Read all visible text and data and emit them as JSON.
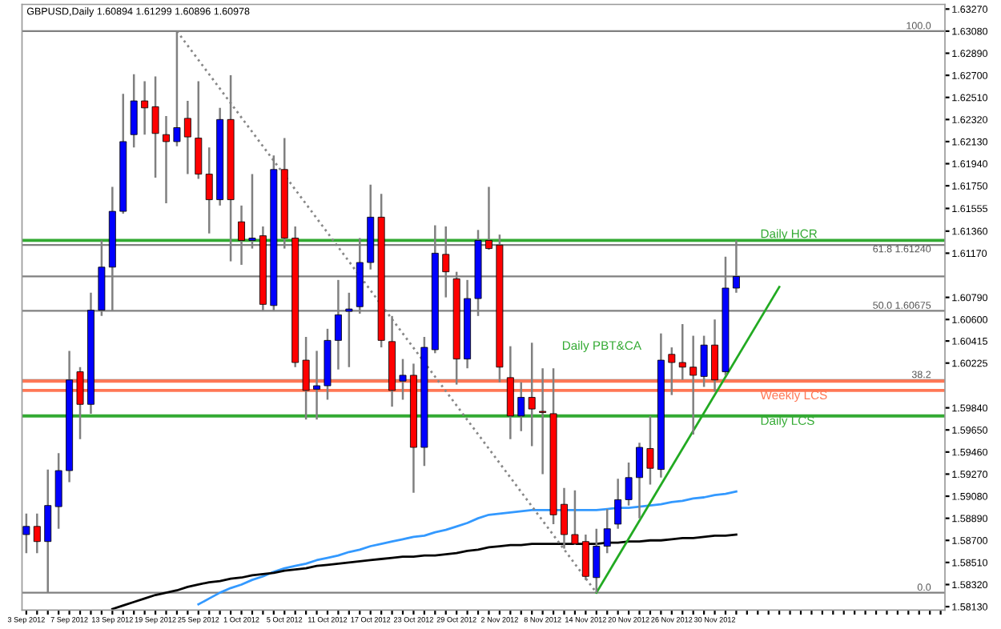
{
  "chart_data": {
    "type": "candlestick",
    "title": "GBPUSD,Daily 1.60894 1.61299 1.60896 1.60978",
    "categories": [
      "3 Sep 2012",
      null,
      null,
      null,
      "7 Sep 2012",
      null,
      null,
      null,
      "13 Sep 2012",
      null,
      null,
      null,
      "19 Sep 2012",
      null,
      null,
      null,
      "25 Sep 2012",
      null,
      null,
      null,
      "1 Oct 2012",
      null,
      null,
      null,
      "5 Oct 2012",
      null,
      null,
      null,
      "11 Oct 2012",
      null,
      null,
      null,
      "17 Oct 2012",
      null,
      null,
      null,
      "23 Oct 2012",
      null,
      null,
      null,
      "29 Oct 2012",
      null,
      null,
      null,
      "2 Nov 2012",
      null,
      null,
      null,
      "8 Nov 2012",
      null,
      null,
      null,
      "14 Nov 2012",
      null,
      null,
      null,
      "20 Nov 2012",
      null,
      null,
      null,
      "26 Nov 2012",
      null,
      null,
      null,
      "30 Nov 2012",
      null,
      null,
      null,
      null,
      null,
      null,
      null,
      null,
      null,
      null,
      null,
      null,
      null,
      null,
      null,
      null,
      null,
      null,
      null,
      null,
      null
    ],
    "ohlc": [
      [
        1.5875,
        1.5893,
        1.5859,
        1.5882
      ],
      [
        1.5882,
        1.5893,
        1.5859,
        1.5869
      ],
      [
        1.5869,
        1.5931,
        1.5825,
        1.59
      ],
      [
        1.5899,
        1.5945,
        1.588,
        1.593
      ],
      [
        1.593,
        1.6033,
        1.592,
        1.6008
      ],
      [
        1.6015,
        1.6019,
        1.5957,
        1.5987
      ],
      [
        1.5987,
        1.6083,
        1.5979,
        1.6068
      ],
      [
        1.6068,
        1.6128,
        1.6063,
        1.6105
      ],
      [
        1.6105,
        1.6174,
        1.6067,
        1.6153
      ],
      [
        1.6153,
        1.6254,
        1.6151,
        1.6213
      ],
      [
        1.6219,
        1.6271,
        1.6208,
        1.6248
      ],
      [
        1.6248,
        1.6265,
        1.6219,
        1.6242
      ],
      [
        1.6243,
        1.6269,
        1.6182,
        1.622
      ],
      [
        1.6219,
        1.6235,
        1.616,
        1.6213
      ],
      [
        1.6213,
        1.6308,
        1.6209,
        1.6225
      ],
      [
        1.6233,
        1.6248,
        1.6185,
        1.6217
      ],
      [
        1.6216,
        1.6265,
        1.6181,
        1.6185
      ],
      [
        1.6185,
        1.6208,
        1.6134,
        1.6163
      ],
      [
        1.6163,
        1.6242,
        1.6158,
        1.6232
      ],
      [
        1.6232,
        1.627,
        1.611,
        1.6163
      ],
      [
        1.6144,
        1.6158,
        1.6107,
        1.6128
      ],
      [
        1.6128,
        1.6185,
        1.6121,
        1.613
      ],
      [
        1.6132,
        1.614,
        1.6067,
        1.6073
      ],
      [
        1.6072,
        1.6201,
        1.6067,
        1.6189
      ],
      [
        1.6189,
        1.6216,
        1.6121,
        1.613
      ],
      [
        1.613,
        1.614,
        1.6019,
        1.6023
      ],
      [
        1.6025,
        1.6045,
        1.5974,
        1.5999
      ],
      [
        1.6,
        1.6033,
        1.5974,
        1.6003
      ],
      [
        1.6003,
        1.6052,
        1.5991,
        1.6042
      ],
      [
        1.6042,
        1.6094,
        1.6017,
        1.6064
      ],
      [
        1.6067,
        1.6083,
        1.6019,
        1.6069
      ],
      [
        1.6071,
        1.613,
        1.6065,
        1.6109
      ],
      [
        1.6109,
        1.6176,
        1.6103,
        1.6148
      ],
      [
        1.6148,
        1.6168,
        1.6036,
        1.6042
      ],
      [
        1.6041,
        1.6063,
        1.5985,
        1.5999
      ],
      [
        1.6007,
        1.6026,
        1.5991,
        1.6012
      ],
      [
        1.6012,
        1.6022,
        1.5911,
        1.595
      ],
      [
        1.595,
        1.6045,
        1.5934,
        1.6036
      ],
      [
        1.6034,
        1.6141,
        1.6031,
        1.6117
      ],
      [
        1.6116,
        1.614,
        1.6079,
        1.6101
      ],
      [
        1.6095,
        1.6101,
        1.6004,
        1.6026
      ],
      [
        1.6026,
        1.6094,
        1.6018,
        1.6078
      ],
      [
        1.6078,
        1.6137,
        1.6063,
        1.6128
      ],
      [
        1.6128,
        1.6174,
        1.612,
        1.6121
      ],
      [
        1.6124,
        1.6133,
        1.6006,
        1.6019
      ],
      [
        1.601,
        1.6037,
        1.5957,
        1.5977
      ],
      [
        1.5977,
        1.6006,
        1.5964,
        1.5993
      ],
      [
        1.5993,
        1.604,
        1.5951,
        1.5983
      ],
      [
        1.5981,
        1.6018,
        1.5927,
        1.598
      ],
      [
        1.5979,
        1.6018,
        1.5884,
        1.5892
      ],
      [
        1.5901,
        1.5915,
        1.5863,
        1.5875
      ],
      [
        1.5875,
        1.5913,
        1.5866,
        1.5867
      ],
      [
        1.5869,
        1.5875,
        1.5836,
        1.5839
      ],
      [
        1.5838,
        1.588,
        1.5825,
        1.5865
      ],
      [
        1.5865,
        1.5897,
        1.5859,
        1.588
      ],
      [
        1.5884,
        1.5923,
        1.588,
        1.5905
      ],
      [
        1.5905,
        1.5937,
        1.59,
        1.5924
      ],
      [
        1.5924,
        1.5954,
        1.5889,
        1.595
      ],
      [
        1.5949,
        1.5977,
        1.5918,
        1.5932
      ],
      [
        1.5931,
        1.6048,
        1.5924,
        1.6025
      ],
      [
        1.603,
        1.6036,
        1.5995,
        1.6023
      ],
      [
        1.6023,
        1.6056,
        1.6008,
        1.6019
      ],
      [
        1.6019,
        1.6046,
        1.5961,
        1.6012
      ],
      [
        1.6011,
        1.6046,
        1.6002,
        1.6038
      ],
      [
        1.6038,
        1.606,
        1.5998,
        1.6008
      ],
      [
        1.6015,
        1.6114,
        1.6012,
        1.6087
      ],
      [
        1.6087,
        1.6128,
        1.6083,
        1.6097
      ],
      null,
      null,
      null,
      null,
      null,
      null,
      null,
      null,
      null,
      null,
      null,
      null,
      null,
      null,
      null,
      null,
      null,
      null,
      null
    ],
    "colors": [
      "#0000ff",
      "#ff0000",
      "#0000ff",
      "#0000ff",
      "#0000ff",
      "#ff0000",
      "#0000ff",
      "#0000ff",
      "#0000ff",
      "#0000ff",
      "#0000ff",
      "#ff0000",
      "#ff0000",
      "#ff0000",
      "#0000ff",
      "#ff0000",
      "#ff0000",
      "#ff0000",
      "#0000ff",
      "#ff0000",
      "#ff0000",
      "#0000ff",
      "#ff0000",
      "#0000ff",
      "#ff0000",
      "#ff0000",
      "#ff0000",
      "#0000ff",
      "#0000ff",
      "#0000ff",
      "#0000ff",
      "#0000ff",
      "#0000ff",
      "#ff0000",
      "#ff0000",
      "#0000ff",
      "#ff0000",
      "#0000ff",
      "#0000ff",
      "#ff0000",
      "#ff0000",
      "#0000ff",
      "#0000ff",
      "#ff0000",
      "#ff0000",
      "#ff0000",
      "#0000ff",
      "#ff0000",
      "#ff0000",
      "#ff0000",
      "#ff0000",
      "#ff0000",
      "#ff0000",
      "#0000ff",
      "#0000ff",
      "#0000ff",
      "#0000ff",
      "#0000ff",
      "#ff0000",
      "#0000ff",
      "#ff0000",
      "#ff0000",
      "#ff0000",
      "#0000ff",
      "#ff0000",
      "#0000ff",
      "#0000ff",
      null,
      null,
      null,
      null,
      null,
      null,
      null,
      null,
      null,
      null,
      null,
      null,
      null,
      null,
      null,
      null,
      null,
      null,
      null
    ],
    "series": [
      {
        "type": "line",
        "color": "#3399ff",
        "line_style": "solid",
        "values": [
          null,
          null,
          null,
          null,
          null,
          null,
          null,
          null,
          null,
          null,
          null,
          null,
          null,
          null,
          null,
          null,
          1.5815,
          1.582,
          1.5825,
          1.5829,
          1.5832,
          1.5836,
          1.5839,
          1.5843,
          1.5846,
          1.5848,
          1.585,
          1.5853,
          1.5855,
          1.5857,
          1.586,
          1.5862,
          1.5865,
          1.5867,
          1.5869,
          1.5871,
          1.5873,
          1.5874,
          1.5877,
          1.5879,
          1.5882,
          1.5885,
          1.5889,
          1.5892,
          1.5893,
          1.5894,
          1.5895,
          1.5896,
          1.5896,
          1.5896,
          1.5896,
          1.5896,
          1.5896,
          1.5896,
          1.5897,
          1.5898,
          1.5898,
          1.5899,
          1.59,
          1.5901,
          1.5903,
          1.5904,
          1.5906,
          1.5907,
          1.5909,
          1.591,
          1.5912,
          null,
          null,
          null,
          null,
          null,
          null,
          null,
          null,
          null,
          null,
          null,
          null,
          null,
          null,
          null,
          null,
          null,
          null,
          null
        ]
      },
      {
        "type": "line",
        "color": "#000000",
        "line_style": "solid",
        "values": [
          null,
          null,
          null,
          null,
          null,
          null,
          null,
          null,
          1.5811,
          1.5814,
          1.5817,
          1.582,
          1.5823,
          1.5825,
          1.5827,
          1.583,
          1.5832,
          1.5834,
          1.5835,
          1.5837,
          1.5838,
          1.584,
          1.5841,
          1.5842,
          1.5844,
          1.5845,
          1.5846,
          1.5848,
          1.5849,
          1.585,
          1.5851,
          1.5852,
          1.5853,
          1.5854,
          1.5855,
          1.5856,
          1.5856,
          1.5857,
          1.5857,
          1.5858,
          1.5859,
          1.5861,
          1.5862,
          1.5864,
          1.5865,
          1.5866,
          1.5866,
          1.5867,
          1.5867,
          1.5867,
          1.5867,
          1.5867,
          1.5867,
          1.5867,
          1.5868,
          1.5868,
          1.5869,
          1.5869,
          1.587,
          1.587,
          1.5871,
          1.5872,
          1.5872,
          1.5873,
          1.5874,
          1.5874,
          1.5875,
          null,
          null,
          null,
          null,
          null,
          null,
          null,
          null,
          null,
          null,
          null,
          null,
          null,
          null,
          null,
          null,
          null,
          null,
          null
        ]
      },
      {
        "type": "line",
        "color": "#22aa22",
        "line_style": "solid",
        "values": [
          null,
          null,
          null,
          null,
          null,
          null,
          null,
          null,
          null,
          null,
          null,
          null,
          null,
          null,
          null,
          null,
          null,
          null,
          null,
          null,
          null,
          null,
          null,
          null,
          null,
          null,
          null,
          null,
          null,
          null,
          null,
          null,
          null,
          null,
          null,
          null,
          null,
          null,
          null,
          null,
          null,
          null,
          null,
          null,
          null,
          null,
          null,
          null,
          null,
          null,
          null,
          null,
          null,
          1.5825,
          null,
          null,
          null,
          null,
          null,
          null,
          null,
          null,
          null,
          null,
          null,
          null,
          null,
          null,
          null,
          null,
          1.6088,
          null,
          null,
          null,
          null,
          null,
          null,
          null,
          null,
          null,
          null,
          null,
          null,
          null,
          null,
          null
        ]
      },
      {
        "type": "line",
        "color": "#888888",
        "line_style": "dotted",
        "values": [
          null,
          null,
          null,
          null,
          null,
          null,
          null,
          null,
          null,
          null,
          null,
          null,
          null,
          null,
          1.6308,
          null,
          null,
          null,
          null,
          null,
          null,
          null,
          null,
          null,
          null,
          null,
          null,
          null,
          null,
          null,
          null,
          null,
          null,
          null,
          null,
          null,
          null,
          null,
          null,
          null,
          null,
          null,
          null,
          null,
          null,
          null,
          null,
          null,
          null,
          null,
          null,
          null,
          null,
          1.5825,
          null,
          null,
          null,
          null,
          null,
          null,
          null,
          null,
          null,
          null,
          null,
          null,
          null,
          null,
          null,
          null,
          null,
          null,
          null,
          null,
          null,
          null,
          null,
          null,
          null,
          null,
          null,
          null,
          null,
          null,
          null,
          null
        ]
      }
    ],
    "ref_lines": [
      {
        "axis": "y",
        "value": 1.6308,
        "color": "#808080",
        "line_style": "solid"
      },
      {
        "axis": "y",
        "value": 1.6128,
        "label": "Daily HCR",
        "color": "#33aa33",
        "line_style": "solid"
      },
      {
        "axis": "y",
        "value": 1.6124,
        "color": "#808080",
        "line_style": "solid"
      },
      {
        "axis": "y",
        "value": 1.6097,
        "color": "#808080",
        "line_style": "solid"
      },
      {
        "axis": "y",
        "value": 1.60675,
        "color": "#808080",
        "line_style": "solid"
      },
      {
        "axis": "y",
        "value": 1.6008,
        "color": "#808080",
        "line_style": "solid"
      },
      {
        "axis": "y",
        "value": 1.6007,
        "color": "#ff7755",
        "line_style": "solid"
      },
      {
        "axis": "y",
        "value": 1.5999,
        "label": "Weekly LCS",
        "color": "#ff7755",
        "line_style": "solid"
      },
      {
        "axis": "y",
        "value": 1.5977,
        "label": "Daily LCS",
        "color": "#33aa33",
        "line_style": "solid"
      },
      {
        "axis": "y",
        "value": 1.5825,
        "color": "#808080",
        "line_style": "solid"
      }
    ],
    "annotations": [
      "Daily PBT&CA",
      {
        "text": "100.0",
        "y": 1.6308
      },
      {
        "text": "61.8 1.61240",
        "y": 1.6124
      },
      {
        "text": "50.0 1.60675",
        "y": 1.60675
      },
      {
        "text": "38.2",
        "y": 1.6008
      },
      {
        "text": "0.0",
        "y": 1.5825
      }
    ],
    "ylim": [
      1.581,
      1.6331
    ],
    "yticks": [
      {
        "value": 1.5813,
        "label": "1.58130"
      },
      {
        "value": 1.5832,
        "label": "1.58320"
      },
      {
        "value": 1.5851,
        "label": "1.58510"
      },
      {
        "value": 1.587,
        "label": "1.58700"
      },
      {
        "value": 1.5889,
        "label": "1.58890"
      },
      {
        "value": 1.5908,
        "label": "1.59080"
      },
      {
        "value": 1.5927,
        "label": "1.59270"
      },
      {
        "value": 1.5946,
        "label": "1.59460"
      },
      {
        "value": 1.5965,
        "label": "1.59650"
      },
      {
        "value": 1.5984,
        "label": "1.59840"
      },
      1.60225,
      1.60415,
      {
        "value": 1.606,
        "label": "1.60600"
      },
      {
        "value": 1.6079,
        "label": "1.60790"
      },
      {
        "value": 1.6117,
        "label": "1.61170"
      },
      {
        "value": 1.6136,
        "label": "1.61360"
      },
      1.61555,
      {
        "value": 1.6175,
        "label": "1.61750"
      },
      {
        "value": 1.6194,
        "label": "1.61940"
      },
      {
        "value": 1.6213,
        "label": "1.62130"
      },
      {
        "value": 1.6232,
        "label": "1.62320"
      },
      {
        "value": 1.6251,
        "label": "1.62510"
      },
      {
        "value": 1.627,
        "label": "1.62700"
      },
      {
        "value": 1.6289,
        "label": "1.62890"
      },
      {
        "value": 1.6308,
        "label": "1.63080"
      },
      {
        "value": 1.6327,
        "label": "1.63270"
      }
    ],
    "grid": false,
    "legend": false
  }
}
